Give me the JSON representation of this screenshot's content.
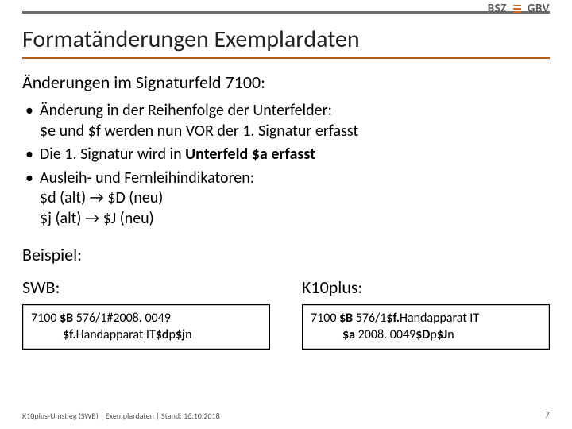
{
  "logos": {
    "left": "BSZ",
    "right": "GBV"
  },
  "title": "Formatänderungen Exemplardaten",
  "subheading": "Änderungen im Signaturfeld 7100:",
  "bullets": [
    {
      "l1": "Änderung in der Reihenfolge der Unterfelder:",
      "l2": "$e und $f werden nun VOR der 1. Signatur erfasst"
    },
    {
      "l1_pre": "Die 1. Signatur wird in ",
      "l1_bold": "Unterfeld $a erfasst"
    },
    {
      "l1": "Ausleih- und Fernleihindikatoren:",
      "l2": "$d (alt) → $D (neu)",
      "l3": "$j (alt)  → $J (neu)"
    }
  ],
  "example_label": "Beispiel:",
  "columns": {
    "left": {
      "label": "SWB:",
      "line1_parts": [
        "7100 ",
        "$B",
        " 576/1#2008. 0049"
      ],
      "line2_parts": [
        "$f.",
        "Handapparat IT",
        "$d",
        "p",
        "$j",
        "n"
      ]
    },
    "right": {
      "label": "K10plus:",
      "line1_parts": [
        "7100 ",
        "$B",
        " 576/1",
        "$f.",
        "Handapparat IT"
      ],
      "line2_parts": [
        "$a",
        " 2008. 0049",
        "$D",
        "p",
        "$J",
        "n"
      ]
    }
  },
  "footer": {
    "text": "K10plus-Umstieg (SWB) | Exemplardaten | Stand: 16.10.2018",
    "page": "7"
  },
  "colors": {
    "title_rule": "#b85a1a",
    "top_rule": "#6b6b6b",
    "accent": "#d46a1f",
    "text": "#000000",
    "footer": "#555555"
  }
}
